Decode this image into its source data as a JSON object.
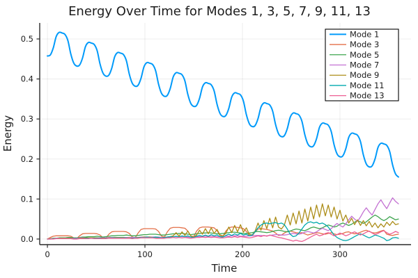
{
  "title": "Energy Over Time for Modes 1, 3, 5, 7, 9, 11, 13",
  "axes": {
    "x_label": "Time",
    "y_label": "Energy",
    "x_tick_labels": [
      "0",
      "100",
      "200",
      "300"
    ],
    "y_tick_labels": [
      "0.0",
      "0.1",
      "0.2",
      "0.3",
      "0.4",
      "0.5"
    ]
  },
  "legend": {
    "entries": [
      "Mode 1",
      "Mode 3",
      "Mode 5",
      "Mode 7",
      "Mode 9",
      "Mode 11",
      "Mode 13"
    ]
  },
  "palette": {
    "mode1": "#009AFA",
    "mode3": "#E36F47",
    "mode5": "#3DA44E",
    "mode7": "#C371D2",
    "mode9": "#AC8D18",
    "mode11": "#00A9AD",
    "mode13": "#ED5E93",
    "grid": "rgba(0,0,0,0.08)",
    "axis": "#2a2a2a",
    "legend_border": "#000000",
    "background": "#ffffff"
  },
  "chart_data": {
    "type": "line",
    "title": "Energy Over Time for Modes 1, 3, 5, 7, 9, 11, 13",
    "xlabel": "Time",
    "ylabel": "Energy",
    "xlim": [
      -7.9,
      372.9
    ],
    "ylim": [
      -0.014,
      0.54
    ],
    "x_ticks": [
      0,
      100,
      200,
      300
    ],
    "y_ticks": [
      0,
      0.1,
      0.2,
      0.3,
      0.4,
      0.5
    ],
    "grid": true,
    "legend_position": "top-right",
    "x": [
      0,
      3,
      6,
      9,
      12,
      15,
      18,
      21,
      24,
      27,
      30,
      33,
      36,
      39,
      42,
      45,
      48,
      51,
      54,
      57,
      60,
      63,
      66,
      69,
      72,
      75,
      78,
      81,
      84,
      87,
      90,
      93,
      96,
      99,
      102,
      105,
      108,
      111,
      114,
      117,
      120,
      123,
      126,
      129,
      132,
      135,
      138,
      141,
      144,
      147,
      150,
      153,
      156,
      159,
      162,
      165,
      168,
      171,
      174,
      177,
      180,
      183,
      186,
      189,
      192,
      195,
      198,
      201,
      204,
      207,
      210,
      213,
      216,
      219,
      222,
      225,
      228,
      231,
      234,
      237,
      240,
      243,
      246,
      249,
      252,
      255,
      258,
      261,
      264,
      267,
      270,
      273,
      276,
      279,
      282,
      285,
      288,
      291,
      294,
      297,
      300,
      303,
      306,
      309,
      312,
      315,
      318,
      321,
      324,
      327,
      330,
      333,
      336,
      339,
      342,
      345,
      348,
      351,
      354,
      357,
      360
    ],
    "series": [
      {
        "name": "Mode 1",
        "color": "#009AFA",
        "line_width": 2.0,
        "smooth": true,
        "values": [
          0.4575,
          0.46,
          0.4775,
          0.5059,
          0.5164,
          0.5149,
          0.5114,
          0.4959,
          0.4623,
          0.4398,
          0.4323,
          0.4348,
          0.4523,
          0.4807,
          0.4912,
          0.4897,
          0.4862,
          0.4707,
          0.4371,
          0.4146,
          0.4071,
          0.4096,
          0.4271,
          0.4555,
          0.466,
          0.4645,
          0.461,
          0.4455,
          0.4119,
          0.3894,
          0.3819,
          0.3844,
          0.4019,
          0.4303,
          0.4408,
          0.4393,
          0.4358,
          0.4203,
          0.3867,
          0.3642,
          0.3567,
          0.3592,
          0.3767,
          0.4051,
          0.4156,
          0.4141,
          0.4106,
          0.3951,
          0.3615,
          0.339,
          0.3315,
          0.334,
          0.3515,
          0.3799,
          0.3904,
          0.3889,
          0.3854,
          0.3699,
          0.3363,
          0.3138,
          0.3063,
          0.3088,
          0.3263,
          0.3547,
          0.3652,
          0.3637,
          0.3602,
          0.3447,
          0.3111,
          0.2886,
          0.2811,
          0.2836,
          0.3011,
          0.3295,
          0.34,
          0.3385,
          0.335,
          0.3195,
          0.2859,
          0.2634,
          0.2559,
          0.2584,
          0.2759,
          0.3043,
          0.3148,
          0.3133,
          0.3098,
          0.2943,
          0.2607,
          0.2382,
          0.2307,
          0.2332,
          0.2507,
          0.2791,
          0.2896,
          0.2881,
          0.2846,
          0.2691,
          0.2355,
          0.213,
          0.2055,
          0.208,
          0.2255,
          0.2539,
          0.2644,
          0.2629,
          0.2594,
          0.2439,
          0.2103,
          0.1878,
          0.1803,
          0.1828,
          0.2003,
          0.2287,
          0.2392,
          0.2377,
          0.2342,
          0.2187,
          0.1851,
          0.1626,
          0.1551
        ]
      },
      {
        "name": "Mode 3",
        "color": "#E36F47",
        "line_width": 1.3,
        "smooth": false,
        "values": [
          0.0,
          0.004,
          0.007,
          0.008,
          0.008,
          0.008,
          0.008,
          0.008,
          0.007,
          0.003,
          0.001,
          0.008,
          0.013,
          0.014,
          0.014,
          0.014,
          0.014,
          0.013,
          0.01,
          0.003,
          0.002,
          0.012,
          0.018,
          0.019,
          0.019,
          0.019,
          0.019,
          0.018,
          0.014,
          0.005,
          0.003,
          0.015,
          0.024,
          0.026,
          0.026,
          0.026,
          0.026,
          0.025,
          0.019,
          0.007,
          0.005,
          0.018,
          0.027,
          0.029,
          0.029,
          0.029,
          0.028,
          0.027,
          0.02,
          0.008,
          0.006,
          0.02,
          0.028,
          0.03,
          0.03,
          0.03,
          0.029,
          0.028,
          0.021,
          0.009,
          0.007,
          0.02,
          0.028,
          0.03,
          0.03,
          0.029,
          0.028,
          0.026,
          0.019,
          0.009,
          0.008,
          0.018,
          0.025,
          0.026,
          0.025,
          0.024,
          0.022,
          0.02,
          0.015,
          0.009,
          0.01,
          0.015,
          0.019,
          0.02,
          0.018,
          0.016,
          0.015,
          0.016,
          0.013,
          0.01,
          0.012,
          0.014,
          0.016,
          0.015,
          0.013,
          0.012,
          0.014,
          0.016,
          0.013,
          0.011,
          0.012,
          0.014,
          0.017,
          0.018,
          0.015,
          0.013,
          0.014,
          0.017,
          0.02,
          0.022,
          0.019,
          0.016,
          0.015,
          0.017,
          0.02,
          0.022,
          0.012,
          0.01,
          0.009,
          0.011,
          0.012
        ]
      },
      {
        "name": "Mode 5",
        "color": "#3DA44E",
        "line_width": 1.3,
        "smooth": false,
        "values": [
          0.0,
          0.001,
          0.002,
          0.002,
          0.003,
          0.003,
          0.003,
          0.004,
          0.004,
          0.003,
          0.003,
          0.004,
          0.005,
          0.005,
          0.006,
          0.006,
          0.006,
          0.007,
          0.006,
          0.005,
          0.006,
          0.007,
          0.008,
          0.008,
          0.009,
          0.009,
          0.009,
          0.01,
          0.009,
          0.008,
          0.008,
          0.009,
          0.01,
          0.011,
          0.011,
          0.012,
          0.012,
          0.012,
          0.011,
          0.01,
          0.01,
          0.011,
          0.012,
          0.013,
          0.013,
          0.014,
          0.014,
          0.013,
          0.012,
          0.011,
          0.012,
          0.013,
          0.014,
          0.015,
          0.015,
          0.016,
          0.015,
          0.014,
          0.013,
          0.013,
          0.014,
          0.015,
          0.016,
          0.017,
          0.017,
          0.016,
          0.015,
          0.014,
          0.014,
          0.015,
          0.016,
          0.018,
          0.019,
          0.018,
          0.017,
          0.016,
          0.017,
          0.019,
          0.021,
          0.022,
          0.021,
          0.019,
          0.018,
          0.02,
          0.023,
          0.025,
          0.024,
          0.022,
          0.021,
          0.024,
          0.028,
          0.03,
          0.028,
          0.026,
          0.028,
          0.032,
          0.035,
          0.033,
          0.03,
          0.032,
          0.037,
          0.04,
          0.037,
          0.034,
          0.037,
          0.042,
          0.046,
          0.043,
          0.039,
          0.043,
          0.049,
          0.055,
          0.06,
          0.056,
          0.05,
          0.046,
          0.05,
          0.056,
          0.052,
          0.048,
          0.05
        ]
      },
      {
        "name": "Mode 7",
        "color": "#C371D2",
        "line_width": 1.3,
        "smooth": false,
        "values": [
          0.0,
          0.001,
          0.001,
          0.002,
          0.002,
          0.002,
          0.002,
          0.002,
          0.002,
          0.002,
          0.002,
          0.003,
          0.003,
          0.003,
          0.003,
          0.003,
          0.003,
          0.003,
          0.003,
          0.003,
          0.003,
          0.004,
          0.004,
          0.004,
          0.004,
          0.004,
          0.004,
          0.004,
          0.004,
          0.004,
          0.004,
          0.004,
          0.005,
          0.005,
          0.005,
          0.005,
          0.005,
          0.005,
          0.005,
          0.004,
          0.004,
          0.005,
          0.005,
          0.006,
          0.006,
          0.006,
          0.006,
          0.006,
          0.005,
          0.005,
          0.005,
          0.006,
          0.006,
          0.007,
          0.007,
          0.007,
          0.007,
          0.006,
          0.006,
          0.006,
          0.006,
          0.007,
          0.007,
          0.008,
          0.008,
          0.008,
          0.007,
          0.007,
          0.007,
          0.008,
          0.008,
          0.009,
          0.009,
          0.009,
          0.008,
          0.008,
          0.009,
          0.01,
          0.011,
          0.011,
          0.01,
          0.01,
          0.011,
          0.013,
          0.014,
          0.013,
          0.012,
          0.014,
          0.017,
          0.019,
          0.017,
          0.015,
          0.018,
          0.023,
          0.027,
          0.024,
          0.021,
          0.026,
          0.033,
          0.039,
          0.034,
          0.03,
          0.038,
          0.048,
          0.057,
          0.05,
          0.044,
          0.055,
          0.068,
          0.078,
          0.068,
          0.06,
          0.074,
          0.088,
          0.098,
          0.086,
          0.076,
          0.09,
          0.103,
          0.094,
          0.088
        ]
      },
      {
        "name": "Mode 9",
        "color": "#AC8D18",
        "line_width": 1.3,
        "smooth": false,
        "values": [
          0.0,
          0.001,
          0.001,
          0.001,
          0.002,
          0.002,
          0.002,
          0.002,
          0.002,
          0.001,
          0.001,
          0.002,
          0.002,
          0.003,
          0.003,
          0.003,
          0.003,
          0.003,
          0.002,
          0.002,
          0.002,
          0.003,
          0.003,
          0.004,
          0.004,
          0.004,
          0.004,
          0.003,
          0.003,
          0.002,
          0.003,
          0.004,
          0.004,
          0.005,
          0.005,
          0.005,
          0.004,
          0.004,
          0.003,
          0.003,
          0.004,
          0.005,
          0.006,
          0.008,
          0.016,
          0.007,
          0.018,
          0.009,
          0.02,
          0.008,
          0.005,
          0.01,
          0.022,
          0.012,
          0.026,
          0.013,
          0.028,
          0.014,
          0.024,
          0.01,
          0.008,
          0.014,
          0.03,
          0.016,
          0.034,
          0.018,
          0.036,
          0.017,
          0.028,
          0.012,
          0.01,
          0.02,
          0.04,
          0.022,
          0.046,
          0.026,
          0.052,
          0.028,
          0.055,
          0.03,
          0.025,
          0.035,
          0.06,
          0.035,
          0.065,
          0.038,
          0.07,
          0.04,
          0.075,
          0.045,
          0.08,
          0.05,
          0.085,
          0.055,
          0.088,
          0.058,
          0.085,
          0.055,
          0.08,
          0.05,
          0.072,
          0.045,
          0.06,
          0.04,
          0.052,
          0.036,
          0.048,
          0.034,
          0.046,
          0.033,
          0.044,
          0.03,
          0.04,
          0.028,
          0.038,
          0.03,
          0.042,
          0.034,
          0.044,
          0.036,
          0.038
        ]
      },
      {
        "name": "Mode 11",
        "color": "#00A9AD",
        "line_width": 1.3,
        "smooth": false,
        "values": [
          0.0,
          0.0,
          0.001,
          0.001,
          0.001,
          0.001,
          0.001,
          0.001,
          0.001,
          0.001,
          0.001,
          0.001,
          0.001,
          0.002,
          0.002,
          0.002,
          0.002,
          0.002,
          0.002,
          0.001,
          0.002,
          0.002,
          0.003,
          0.003,
          0.003,
          0.003,
          0.003,
          0.003,
          0.002,
          0.002,
          0.003,
          0.003,
          0.004,
          0.004,
          0.005,
          0.004,
          0.004,
          0.005,
          0.004,
          0.003,
          0.004,
          0.005,
          0.006,
          0.005,
          0.007,
          0.005,
          0.008,
          0.006,
          0.008,
          0.005,
          0.004,
          0.007,
          0.009,
          0.007,
          0.01,
          0.007,
          0.011,
          0.008,
          0.01,
          0.006,
          0.005,
          0.009,
          0.012,
          0.009,
          0.013,
          0.01,
          0.014,
          0.01,
          0.012,
          0.008,
          0.01,
          0.018,
          0.028,
          0.035,
          0.039,
          0.04,
          0.038,
          0.04,
          0.041,
          0.038,
          0.04,
          0.036,
          0.025,
          0.012,
          0.006,
          0.008,
          0.015,
          0.025,
          0.035,
          0.041,
          0.043,
          0.04,
          0.042,
          0.038,
          0.04,
          0.036,
          0.03,
          0.02,
          0.01,
          0.004,
          0.0,
          -0.003,
          -0.004,
          -0.002,
          0.002,
          0.006,
          0.01,
          0.013,
          0.01,
          0.006,
          0.003,
          0.006,
          0.01,
          0.008,
          0.005,
          0.002,
          -0.004,
          -0.002,
          0.003,
          0.004,
          0.002
        ]
      },
      {
        "name": "Mode 13",
        "color": "#ED5E93",
        "line_width": 1.3,
        "smooth": false,
        "values": [
          0.0,
          0.0,
          0.0,
          0.001,
          0.001,
          0.001,
          0.001,
          0.001,
          0.001,
          0.0,
          0.0,
          0.001,
          0.001,
          0.001,
          0.001,
          0.002,
          0.001,
          0.001,
          0.001,
          0.001,
          0.001,
          0.002,
          0.002,
          0.002,
          0.002,
          0.002,
          0.002,
          0.002,
          0.002,
          0.001,
          0.002,
          0.002,
          0.003,
          0.003,
          0.003,
          0.003,
          0.003,
          0.002,
          0.002,
          0.002,
          0.002,
          0.003,
          0.003,
          0.004,
          0.003,
          0.004,
          0.003,
          0.004,
          0.003,
          0.002,
          0.003,
          0.004,
          0.004,
          0.005,
          0.004,
          0.005,
          0.004,
          0.005,
          0.004,
          0.003,
          0.003,
          0.004,
          0.005,
          0.004,
          0.006,
          0.004,
          0.006,
          0.005,
          0.004,
          0.003,
          0.004,
          0.006,
          0.008,
          0.006,
          0.009,
          0.007,
          0.01,
          0.008,
          0.006,
          0.004,
          0.003,
          0.001,
          -0.001,
          -0.003,
          -0.005,
          -0.003,
          -0.005,
          -0.006,
          -0.003,
          0.001,
          0.005,
          0.009,
          0.012,
          0.008,
          0.01,
          0.014,
          0.016,
          0.012,
          0.008,
          0.011,
          0.015,
          0.012,
          0.008,
          0.011,
          0.015,
          0.018,
          0.014,
          0.01,
          0.013,
          0.017,
          0.02,
          0.015,
          0.011,
          0.014,
          0.018,
          0.021,
          0.016,
          0.012,
          0.015,
          0.019,
          0.016
        ]
      }
    ]
  }
}
